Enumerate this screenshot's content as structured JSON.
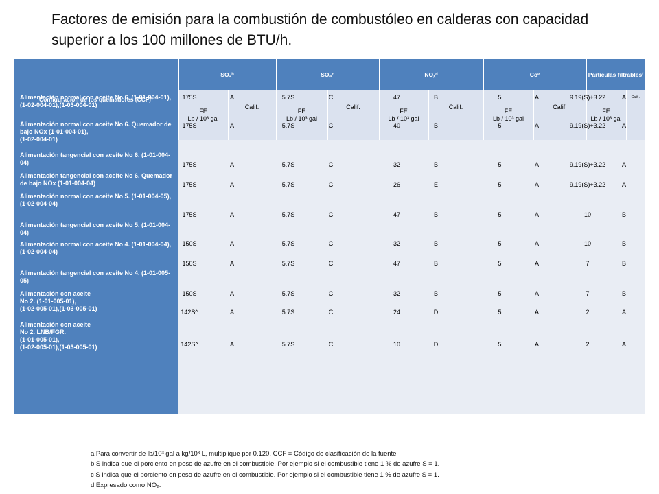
{
  "title": "Factores de emisión para la combustión de combustóleo en calderas con capacidad superior a los 100 millones de BTU/h.",
  "header": {
    "ccf": "Configuración de los quemadores (CCF)ª",
    "groups": [
      "SO₂ᵇ",
      "SO₃ᶜ",
      "NOₓᵈ",
      "Coᵉ",
      "Partículas filtrablesᶠ"
    ],
    "fe_label": "FE",
    "fe_units": [
      "Lb / 10³ gal",
      "Lb / 10³ gal",
      "Lb / 10³ gal",
      "Lb / 10³ gal",
      "Lb / 10³ gal"
    ],
    "calif_label": "Calif.",
    "calif_small": "Calif ."
  },
  "rows": [
    {
      "label": "Alimentación normal con aceite No 6. (1-01-004-01),\n(1-02-004-01),(1-03-004-01)",
      "so2": "175S",
      "so2c": "A",
      "so3": "5.7S",
      "so3c": "C",
      "nox": "47",
      "noxc": "B",
      "co": "5",
      "coc": "A",
      "pf": "9.19(S)+3.22",
      "pfc": "A"
    },
    {
      "label": "Alimentación normal con aceite No 6. Quemador de bajo NOx (1-01-004-01),\n(1-02-004-01)",
      "so2": "175S",
      "so2c": "A",
      "so3": "5.7S",
      "so3c": "C",
      "nox": "40",
      "noxc": "B",
      "co": "5",
      "coc": "A",
      "pf": "9.19(S)+3.22",
      "pfc": "A"
    },
    {
      "label": "Alimentación tangencial con aceite No 6. (1-01-004-04)",
      "so2": "175S",
      "so2c": "A",
      "so3": "5.7S",
      "so3c": "C",
      "nox": "32",
      "noxc": "B",
      "co": "5",
      "coc": "A",
      "pf": "9.19(S)+3.22",
      "pfc": "A"
    },
    {
      "label": "Alimentación tangencial con aceite No 6. Quemador de bajo NOx (1-01-004-04)",
      "so2": "175S",
      "so2c": "A",
      "so3": "5.7S",
      "so3c": "C",
      "nox": "26",
      "noxc": "E",
      "co": "5",
      "coc": "A",
      "pf": "9.19(S)+3.22",
      "pfc": "A"
    },
    {
      "label": "Alimentación normal con aceite No 5. (1-01-004-05),\n(1-02-004-04)",
      "so2": "175S",
      "so2c": "A",
      "so3": "5.7S",
      "so3c": "C",
      "nox": "47",
      "noxc": "B",
      "co": "5",
      "coc": "A",
      "pf": "10",
      "pfc": "B"
    },
    {
      "label": "Alimentación tangencial con aceite No 5. (1-01-004-04)",
      "so2": "",
      "so2c": "",
      "so3": "",
      "so3c": "",
      "nox": "",
      "noxc": "",
      "co": "",
      "coc": "",
      "pf": "",
      "pfc": ""
    },
    {
      "label": "Alimentación normal con aceite No 4. (1-01-004-04),\n(1-02-004-04)",
      "so2": "150S",
      "so2c": "A",
      "so3": "5.7S",
      "so3c": "C",
      "nox": "32",
      "noxc": "B",
      "co": "5",
      "coc": "A",
      "pf": "10",
      "pfc": "B"
    },
    {
      "label": "Alimentación tangencial con aceite No 4. (1-01-005-05)",
      "so2": "150S",
      "so2c": "A",
      "so3": "5.7S",
      "so3c": "C",
      "nox": "47",
      "noxc": "B",
      "co": "5",
      "coc": "A",
      "pf": "7",
      "pfc": "B"
    },
    {
      "label": "Alimentación con aceite\nNo 2. (1-01-005-01),\n(1-02-005-01),(1-03-005-01)",
      "so2": "150S",
      "so2c": "A",
      "so3": "5.7S",
      "so3c": "C",
      "nox": "32",
      "noxc": "B",
      "co": "5",
      "coc": "A",
      "pf": "7",
      "pfc": "B"
    },
    {
      "label": "Alimentación  con aceite\nNo 2. LNB/FGR.\n(1-01-005-01),\n(1-02-005-01),(1-03-005-01)",
      "so2": "142S^",
      "so2c": "A",
      "so3": "5.7S",
      "so3c": "C",
      "nox": "24",
      "noxc": "D",
      "co": "5",
      "coc": "A",
      "pf": "2",
      "pfc": "A"
    },
    {
      "label": "",
      "so2": "142S^",
      "so2c": "A",
      "so3": "5.7S",
      "so3c": "C",
      "nox": "10",
      "noxc": "D",
      "co": "5",
      "coc": "A",
      "pf": "2",
      "pfc": "A"
    }
  ],
  "footnotes": [
    "a  Para convertir de lb/10³ gal a kg/10³ L, multiplique por 0.120. CCF = Código de clasificación de la fuente",
    "b  S indica que el porciento en peso de azufre en el combustible. Por ejemplo si el combustible tiene 1 % de azufre S = 1.",
    "c  S indica que el porciento en peso de azufre en el combustible. Por ejemplo si el combustible tiene 1 % de azufre S = 1.",
    "d  Expresado como NO₂."
  ]
}
